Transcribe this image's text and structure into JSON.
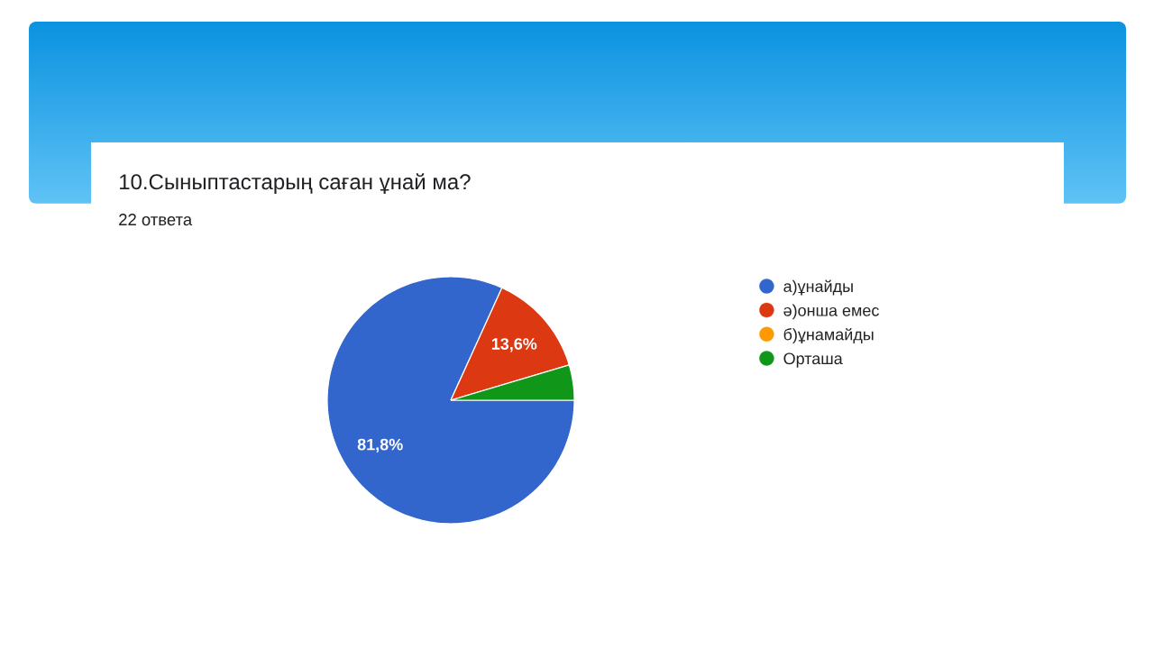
{
  "chart_data": {
    "type": "pie",
    "title": "10.Сыныптастарың саған ұнай ма?",
    "subtitle": "22 ответа",
    "categories": [
      "а)ұнайды",
      "ә)онша емес",
      "б)ұнамайды",
      "Орташа"
    ],
    "values": [
      81.8,
      13.6,
      0,
      4.6
    ],
    "colors": [
      "#3366cc",
      "#dc3912",
      "#ff9900",
      "#109618"
    ],
    "value_labels": [
      "81,8%",
      "13,6%",
      null,
      null
    ],
    "legend": "right"
  }
}
